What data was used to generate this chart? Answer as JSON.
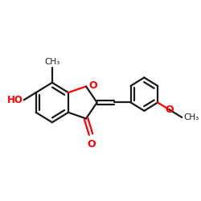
{
  "bg_color": "#ffffff",
  "bond_color": "#1a1a1a",
  "oxygen_color": "#ff0000",
  "linewidth": 1.6,
  "figsize": [
    2.5,
    2.5
  ],
  "dpi": 100,
  "xlim": [
    0,
    1
  ],
  "ylim": [
    0,
    1
  ]
}
